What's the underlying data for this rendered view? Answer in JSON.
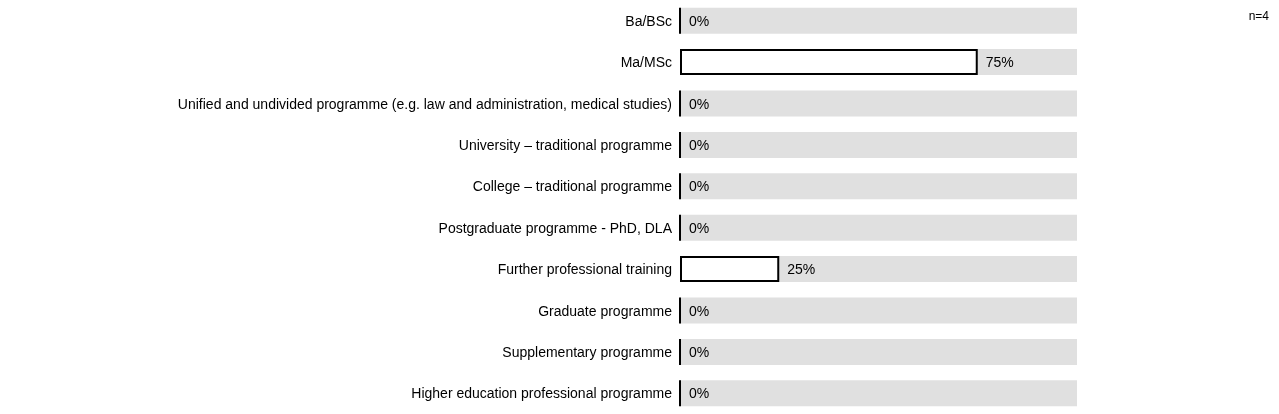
{
  "chart_data": {
    "type": "bar",
    "orientation": "horizontal",
    "categories": [
      "Ba/BSc",
      "Ma/MSc",
      "Unified and undivided programme (e.g. law and administration, medical studies)",
      "University – traditional programme",
      "College – traditional programme",
      "Postgraduate programme - PhD, DLA",
      "Further professional training",
      "Graduate programme",
      "Supplementary programme",
      "Higher education professional programme"
    ],
    "values": [
      0,
      75,
      0,
      0,
      0,
      0,
      25,
      0,
      0,
      0
    ],
    "value_labels": [
      "0%",
      "75%",
      "0%",
      "0%",
      "0%",
      "0%",
      "25%",
      "0%",
      "0%",
      "0%"
    ],
    "colors": [
      "#000000",
      "#ffffff",
      "#000000",
      "#000000",
      "#000000",
      "#000000",
      "#ffffff",
      "#000000",
      "#000000",
      "#000000"
    ],
    "xlim": [
      0,
      100
    ],
    "tick_labels": "y",
    "annotations": [
      "n=4"
    ]
  }
}
